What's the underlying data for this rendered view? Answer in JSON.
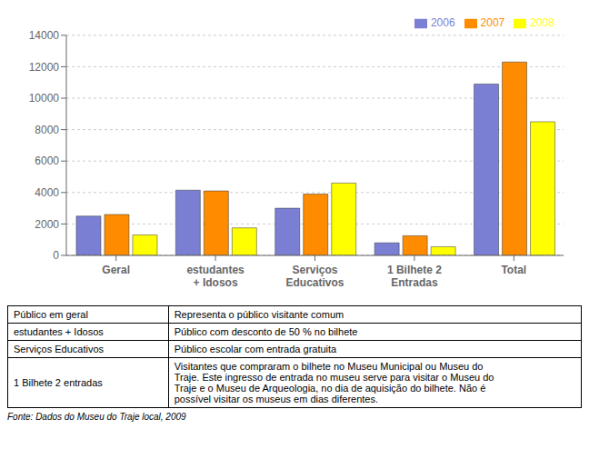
{
  "chart_data": {
    "type": "bar",
    "categories": [
      "Geral",
      "estudantes\n+ Idosos",
      "Serviços\nEducativos",
      "1 Bilhete 2\nEntradas",
      "Total"
    ],
    "series": [
      {
        "name": "2006",
        "color": "#7B7FD4",
        "values": [
          2500,
          4150,
          3000,
          800,
          10900
        ]
      },
      {
        "name": "2007",
        "color": "#FF8C00",
        "values": [
          2600,
          4100,
          3900,
          1250,
          12300
        ]
      },
      {
        "name": "2008",
        "color": "#FFFF00",
        "values": [
          1300,
          1750,
          4600,
          550,
          8500
        ]
      }
    ],
    "ylim": [
      0,
      14000
    ],
    "yticks": [
      0,
      2000,
      4000,
      6000,
      8000,
      10000,
      12000,
      14000
    ],
    "grid": true,
    "legend": "upper right",
    "table": [
      [
        "Público em geral",
        "Representa o público visitante comum"
      ],
      [
        "estudantes + Idosos",
        "Público com desconto de 50 % no bilhete"
      ],
      [
        "Serviços Educativos",
        "Público escolar com entrada gratuita"
      ],
      [
        "1 Bilhete 2 entradas",
        "Visitantes que compraram o bilhete no Museu Municipal ou Museu do\nTraje. Este ingresso de entrada no museu serve para visitar o Museu do\nTraje e o Museu de Arqueologia, no dia de aquisição do bilhete. Não é\npossível visitar os museus em dias diferentes."
      ]
    ],
    "footnote": "Fonte: Dados do Museu do Traje local, 2009"
  }
}
